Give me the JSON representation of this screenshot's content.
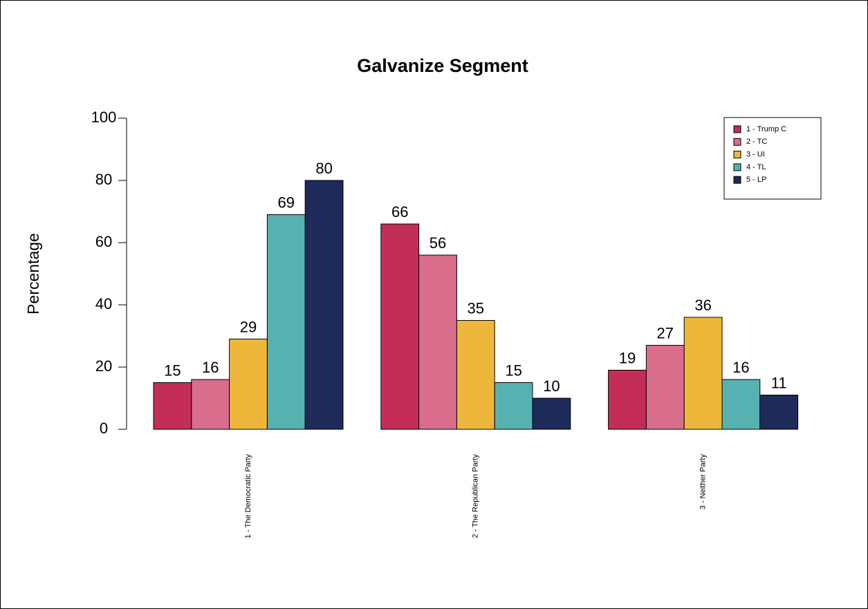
{
  "chart_data": {
    "type": "bar",
    "title": "Galvanize Segment",
    "y_label": "Percentage",
    "categories": [
      "1 - The Democratic Party",
      "2 - The Republican Party",
      "3 - Neither Party"
    ],
    "series": [
      {
        "name": "1 - Trump C",
        "color": "#C42D57",
        "values": [
          15,
          66,
          19
        ]
      },
      {
        "name": "2 - TC",
        "color": "#D86D8C",
        "values": [
          16,
          56,
          27
        ]
      },
      {
        "name": "3 - UI",
        "color": "#EDB73B",
        "values": [
          29,
          35,
          36
        ]
      },
      {
        "name": "4 - TL",
        "color": "#58B1B1",
        "values": [
          69,
          15,
          16
        ]
      },
      {
        "name": "5 - LP",
        "color": "#1E2A5A",
        "values": [
          80,
          10,
          11
        ]
      }
    ],
    "ylim": [
      0,
      100
    ],
    "yticks": [
      0,
      20,
      40,
      60,
      80,
      100
    ],
    "legend": "top-right"
  }
}
